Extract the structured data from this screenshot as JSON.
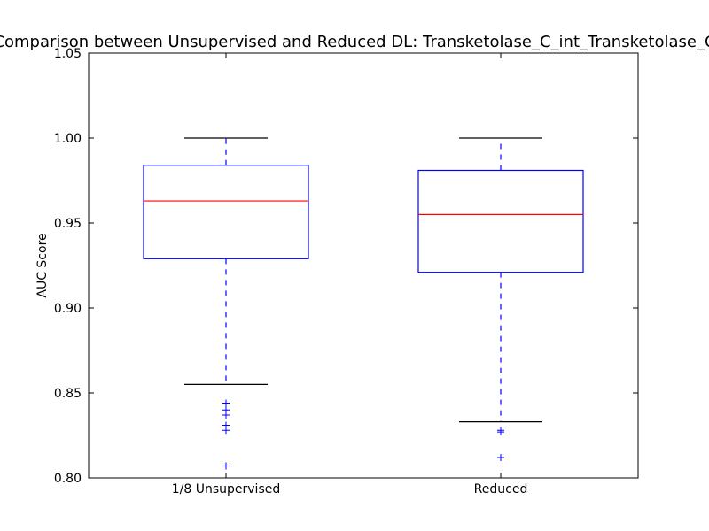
{
  "chart_data": {
    "type": "boxplot",
    "title": "Comparison between Unsupervised and Reduced DL: Transketolase_C_int_Transketolase_C",
    "ylabel": "AUC Score",
    "ylim": [
      0.8,
      1.05
    ],
    "yticks": [
      "0.80",
      "0.85",
      "0.90",
      "0.95",
      "1.00",
      "1.05"
    ],
    "categories": [
      "1/8 Unsupervised",
      "Reduced"
    ],
    "boxes": [
      {
        "label": "1/8 Unsupervised",
        "whisker_low": 0.855,
        "q1": 0.929,
        "median": 0.963,
        "q3": 0.984,
        "whisker_high": 1.0,
        "outliers": [
          0.844,
          0.84,
          0.837,
          0.831,
          0.828,
          0.807
        ]
      },
      {
        "label": "Reduced",
        "whisker_low": 0.833,
        "q1": 0.921,
        "median": 0.955,
        "q3": 0.981,
        "whisker_high": 1.0,
        "outliers": [
          0.828,
          0.827,
          0.812
        ]
      }
    ],
    "colors": {
      "box": "#0000ff",
      "median": "#ff0000",
      "cap": "#000000",
      "outlier": "#0000ff"
    },
    "grid": false
  }
}
